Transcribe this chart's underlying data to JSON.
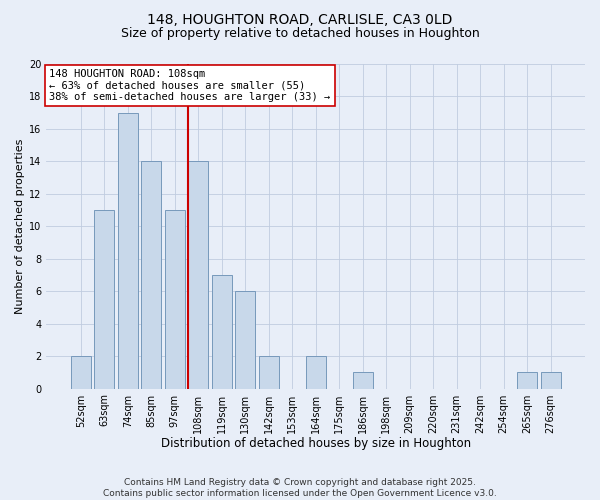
{
  "title": "148, HOUGHTON ROAD, CARLISLE, CA3 0LD",
  "subtitle": "Size of property relative to detached houses in Houghton",
  "xlabel": "Distribution of detached houses by size in Houghton",
  "ylabel": "Number of detached properties",
  "categories": [
    "52sqm",
    "63sqm",
    "74sqm",
    "85sqm",
    "97sqm",
    "108sqm",
    "119sqm",
    "130sqm",
    "142sqm",
    "153sqm",
    "164sqm",
    "175sqm",
    "186sqm",
    "198sqm",
    "209sqm",
    "220sqm",
    "231sqm",
    "242sqm",
    "254sqm",
    "265sqm",
    "276sqm"
  ],
  "values": [
    2,
    11,
    17,
    14,
    11,
    14,
    7,
    6,
    2,
    0,
    2,
    0,
    1,
    0,
    0,
    0,
    0,
    0,
    0,
    1,
    1
  ],
  "bar_color": "#c8d8ea",
  "bar_edge_color": "#7799bb",
  "vline_x": 4.575,
  "vline_color": "#cc0000",
  "annotation_text": "148 HOUGHTON ROAD: 108sqm\n← 63% of detached houses are smaller (55)\n38% of semi-detached houses are larger (33) →",
  "annotation_box_color": "#ffffff",
  "annotation_box_edge_color": "#cc0000",
  "ylim": [
    0,
    20
  ],
  "yticks": [
    0,
    2,
    4,
    6,
    8,
    10,
    12,
    14,
    16,
    18,
    20
  ],
  "grid_color": "#c0cce0",
  "background_color": "#e8eef8",
  "footer_text": "Contains HM Land Registry data © Crown copyright and database right 2025.\nContains public sector information licensed under the Open Government Licence v3.0.",
  "title_fontsize": 10,
  "subtitle_fontsize": 9,
  "xlabel_fontsize": 8.5,
  "ylabel_fontsize": 8,
  "tick_fontsize": 7,
  "annotation_fontsize": 7.5,
  "footer_fontsize": 6.5
}
